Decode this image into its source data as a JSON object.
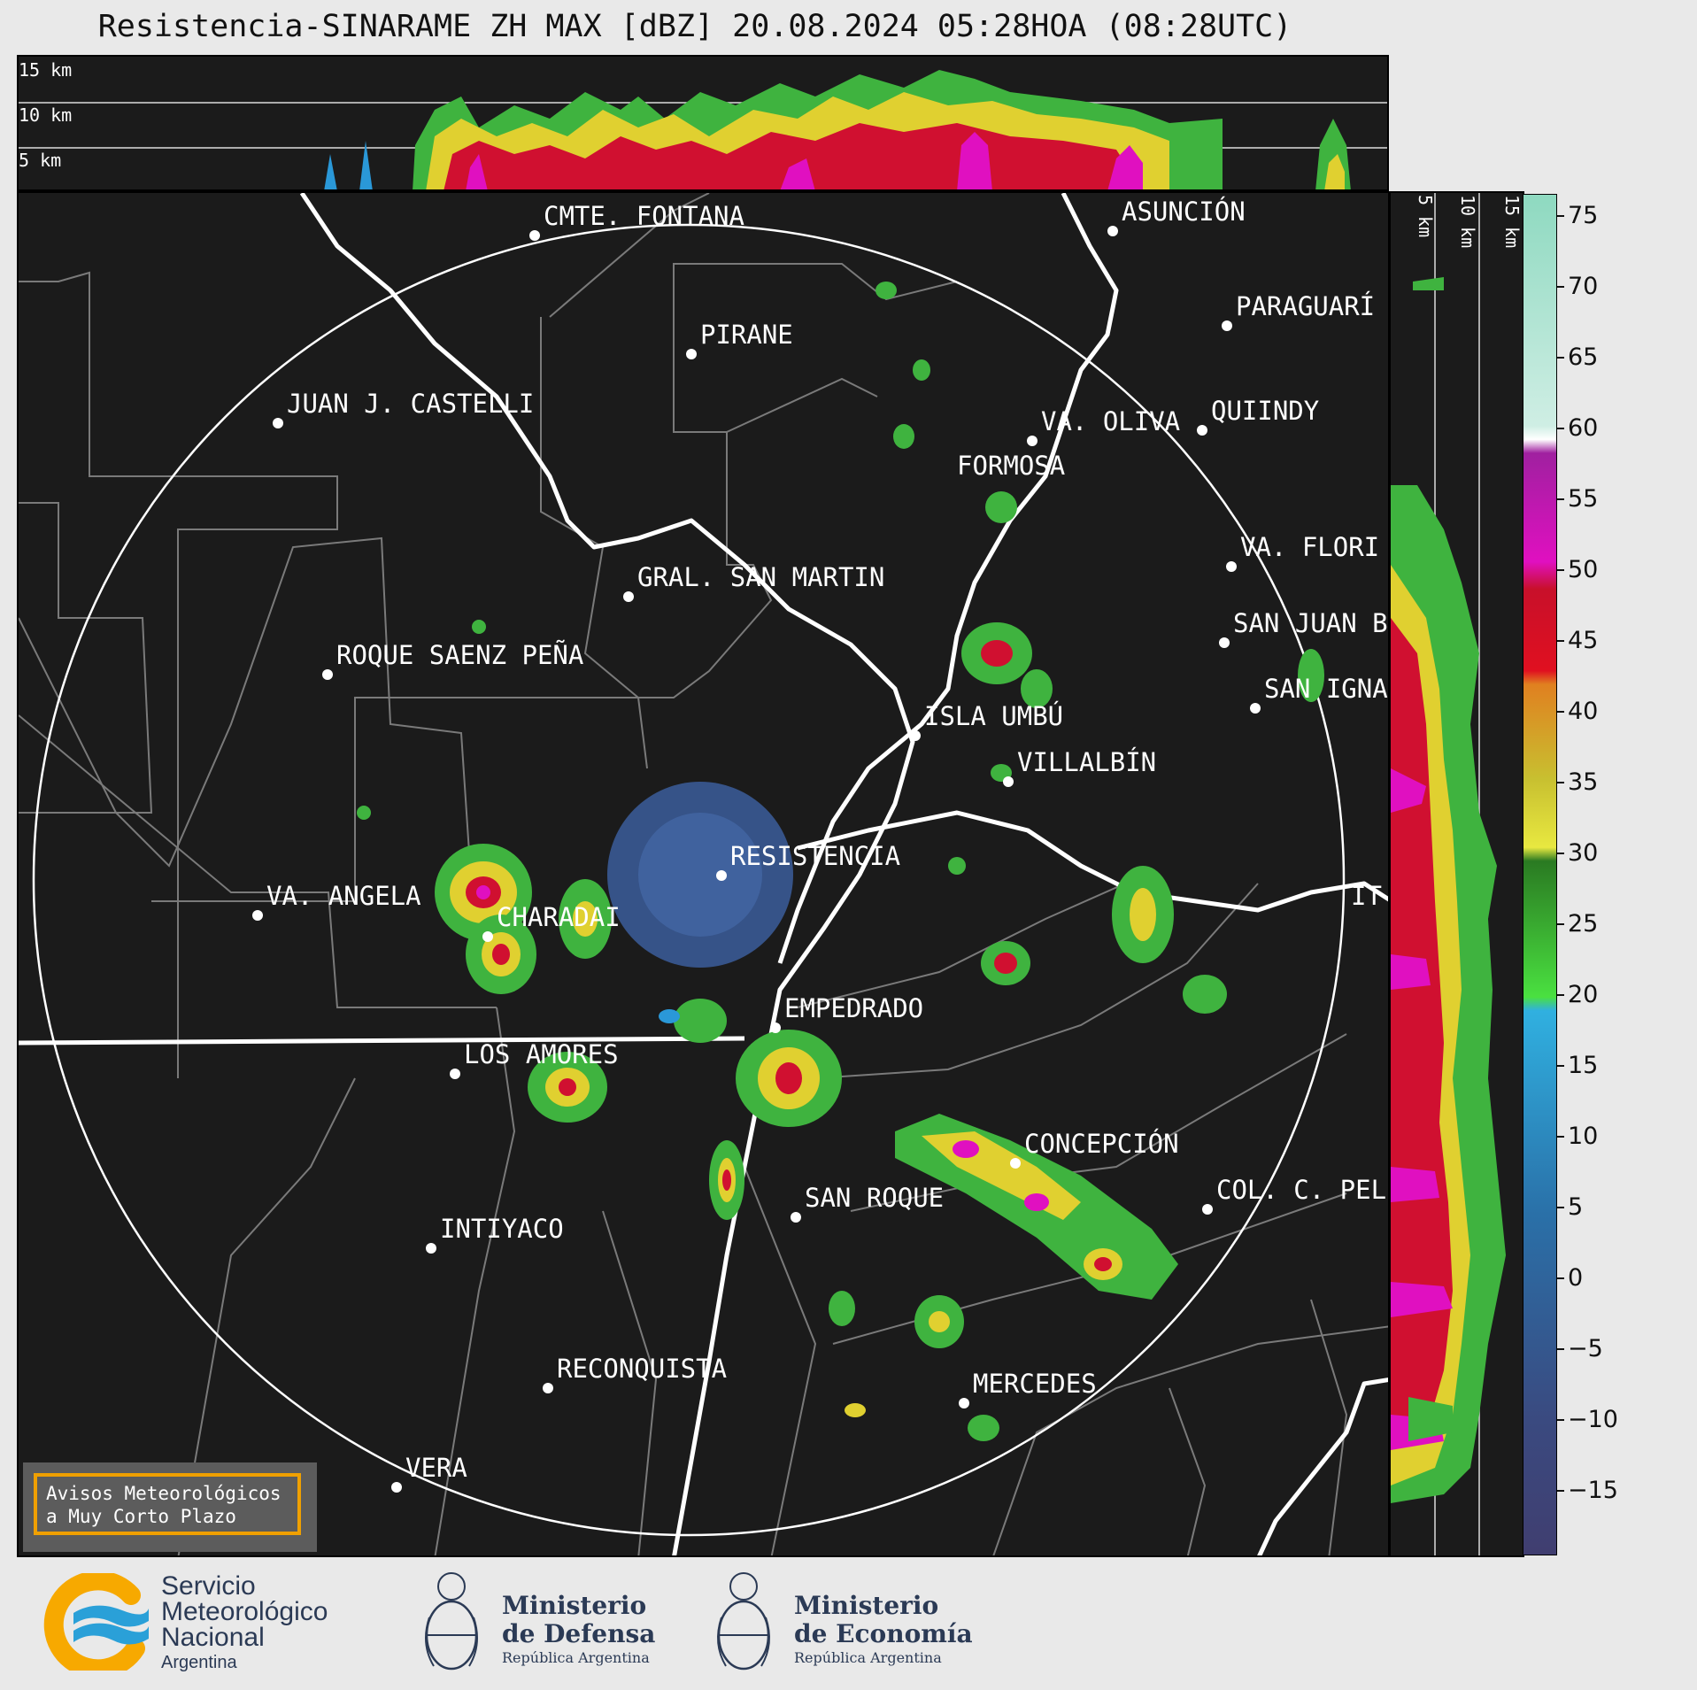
{
  "title": "Resistencia-SINARAME ZH MAX [dBZ] 20.08.2024 05:28HOA (08:28UTC)",
  "top_strip": {
    "height_labels": [
      "15 km",
      "10 km",
      "5 km"
    ]
  },
  "side_strip": {
    "height_labels": [
      "5 km",
      "10 km",
      "15 km"
    ]
  },
  "colorbar": {
    "unit": "dBZ",
    "ticks": [
      "75",
      "70",
      "65",
      "60",
      "55",
      "50",
      "45",
      "40",
      "35",
      "30",
      "25",
      "20",
      "15",
      "10",
      "5",
      "0",
      "−5",
      "−10",
      "−15"
    ]
  },
  "cities": [
    {
      "name": "CMTE. FONTANA"
    },
    {
      "name": "ASUNCIÓN"
    },
    {
      "name": "PARAGUARÍ"
    },
    {
      "name": "PIRANE"
    },
    {
      "name": "JUAN J. CASTELLI"
    },
    {
      "name": "VA. OLIVA"
    },
    {
      "name": "QUIINDY"
    },
    {
      "name": "FORMOSA"
    },
    {
      "name": "VA. FLORI"
    },
    {
      "name": "GRAL. SAN MARTIN"
    },
    {
      "name": "SAN JUAN B"
    },
    {
      "name": "ROQUE SAENZ PEÑA"
    },
    {
      "name": "SAN IGNA"
    },
    {
      "name": "ISLA UMBÚ"
    },
    {
      "name": "VILLALBÍN"
    },
    {
      "name": "RESISTENCIA"
    },
    {
      "name": "VA. ANGELA"
    },
    {
      "name": "CHARADAI"
    },
    {
      "name": "IT"
    },
    {
      "name": "EMPEDRADO"
    },
    {
      "name": "LOS AMORES"
    },
    {
      "name": "CONCEPCIÓN"
    },
    {
      "name": "SAN ROQUE"
    },
    {
      "name": "COL. C. PEL"
    },
    {
      "name": "INTIYACO"
    },
    {
      "name": "MERCEDES"
    },
    {
      "name": "RECONQUISTA"
    },
    {
      "name": "VERA"
    }
  ],
  "warning_box": {
    "line1": "Avisos Meteorológicos",
    "line2": "a Muy Corto Plazo"
  },
  "logos": {
    "smn": {
      "line1": "Servicio",
      "line2": "Meteorológico",
      "line3": "Nacional",
      "line4": "Argentina"
    },
    "defensa": {
      "line1": "Ministerio",
      "line2": "de Defensa",
      "line3": "República Argentina"
    },
    "economia": {
      "line1": "Ministerio",
      "line2": "de Economía",
      "line3": "República Argentina"
    }
  },
  "colors": {
    "background": "#1b1b1b",
    "borders": "#7a7a7a",
    "rivers": "#ffffff",
    "warning_border": "#f0a000"
  }
}
